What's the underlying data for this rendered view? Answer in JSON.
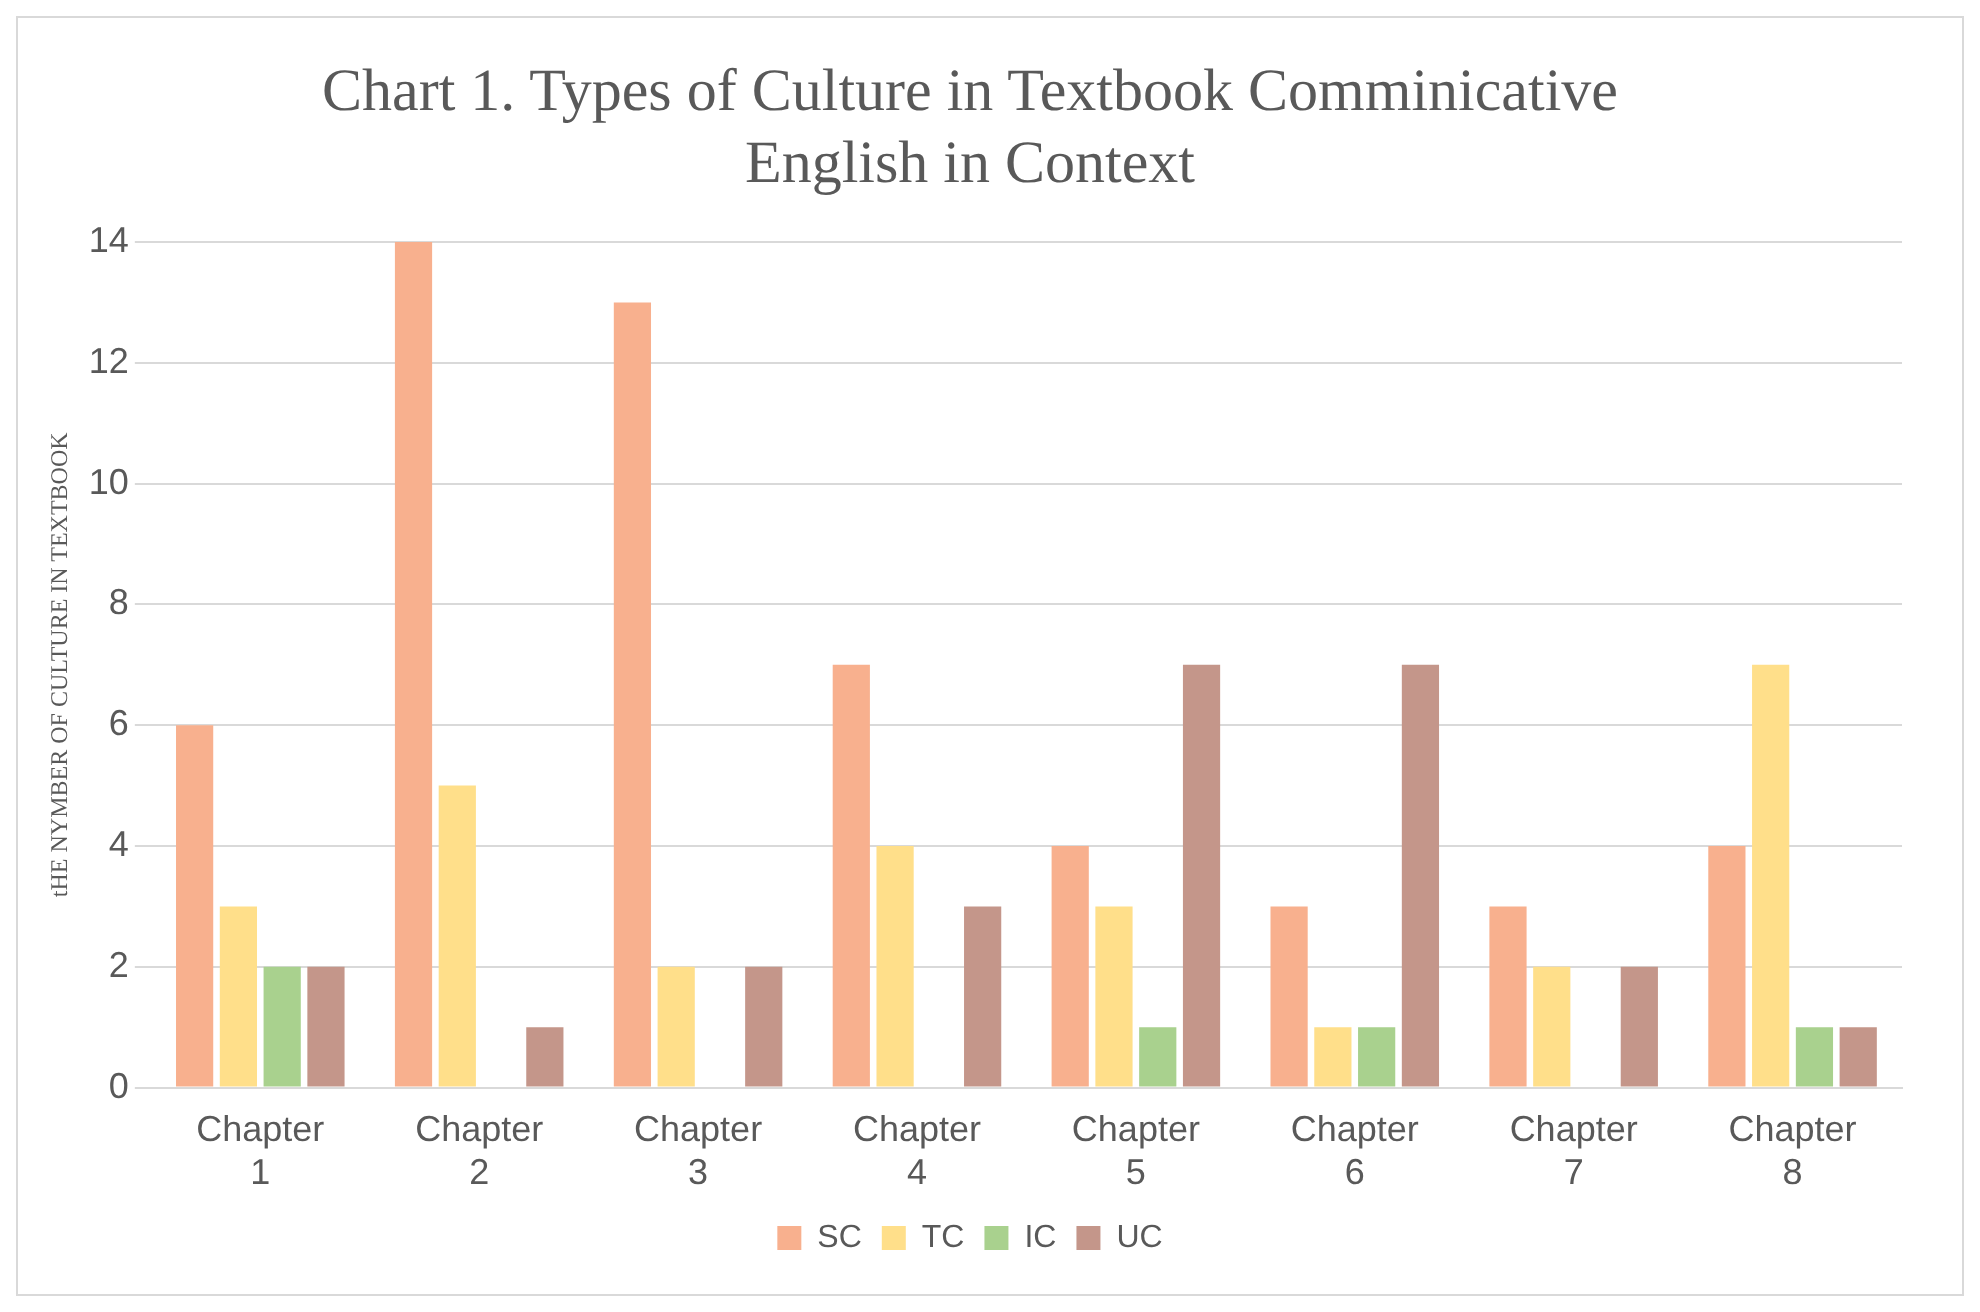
{
  "chart_data": {
    "type": "bar",
    "title": "Chart 1. Types of Culture in Textbook Comminicative English in Context",
    "ylabel": "tHE NYMBER OF CULTURE IN TEXTBOOK",
    "categories": [
      "Chapter 1",
      "Chapter 2",
      "Chapter 3",
      "Chapter 4",
      "Chapter 5",
      "Chapter 6",
      "Chapter 7",
      "Chapter 8"
    ],
    "series": [
      {
        "name": "SC",
        "color": "#f8b08e",
        "values": [
          6,
          14,
          13,
          7,
          4,
          3,
          3,
          4
        ]
      },
      {
        "name": "TC",
        "color": "#ffdf8a",
        "values": [
          3,
          5,
          2,
          4,
          3,
          1,
          2,
          7
        ]
      },
      {
        "name": "IC",
        "color": "#a9d18e",
        "values": [
          2,
          0,
          0,
          0,
          1,
          1,
          0,
          1
        ]
      },
      {
        "name": "UC",
        "color": "#c4968a",
        "values": [
          2,
          1,
          2,
          3,
          7,
          7,
          2,
          1
        ]
      }
    ],
    "ylim": [
      0,
      14
    ],
    "yticks": [
      0,
      2,
      4,
      6,
      8,
      10,
      12,
      14
    ],
    "grid": "y",
    "legend": "bottom"
  }
}
